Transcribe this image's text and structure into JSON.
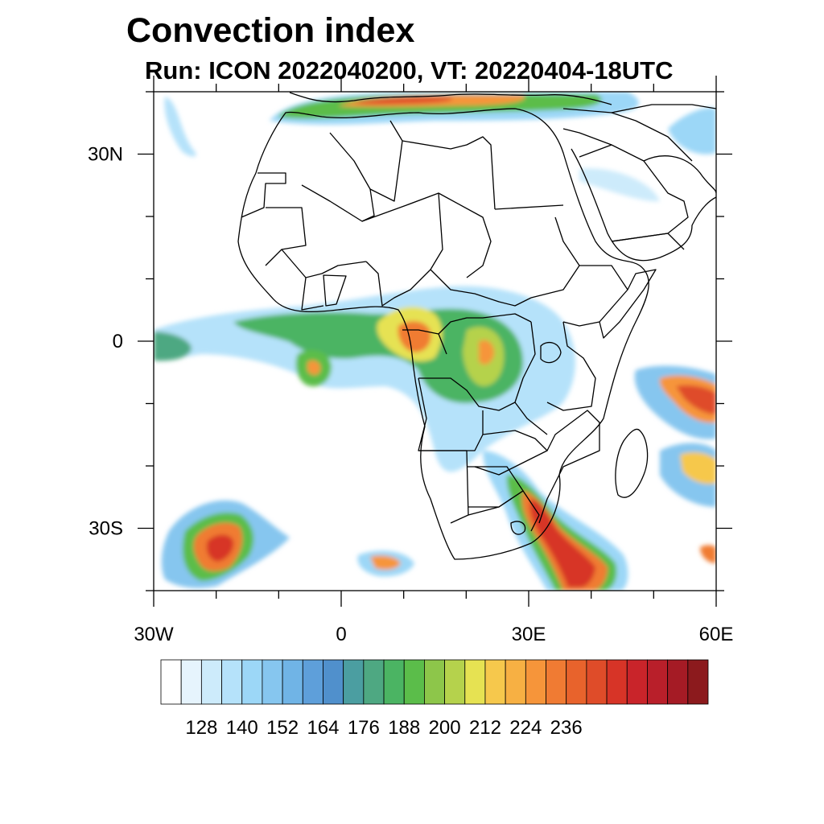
{
  "title": "Convection index",
  "subtitle": "Run: ICON 2022040200,  VT: 20220404-18UTC",
  "map": {
    "lat_range": [
      -40,
      40
    ],
    "lon_range": [
      -30,
      60
    ],
    "lat_ticks": [
      {
        "value": 30,
        "label": "30N"
      },
      {
        "value": 0,
        "label": "0"
      },
      {
        "value": -30,
        "label": "30S"
      }
    ],
    "lon_ticks": [
      {
        "value": -30,
        "label": "30W"
      },
      {
        "value": 0,
        "label": "0"
      },
      {
        "value": 30,
        "label": "30E"
      },
      {
        "value": 60,
        "label": "60E"
      }
    ],
    "minor_lat_ticks": [
      40,
      20,
      10,
      -10,
      -20,
      -40
    ],
    "minor_lon_ticks": [
      -20,
      -10,
      10,
      20,
      40,
      50
    ]
  },
  "colorbar": {
    "colors": [
      "#ffffff",
      "#e6f4fd",
      "#cdebfb",
      "#b5e2fa",
      "#9cd7f7",
      "#86c6ef",
      "#70b4e6",
      "#5e9fda",
      "#5090cc",
      "#4b9ea1",
      "#4ea882",
      "#4bb463",
      "#5bbd4a",
      "#8dc64a",
      "#b5d24c",
      "#e6e252",
      "#f6c84c",
      "#f7b043",
      "#f6953a",
      "#f07b33",
      "#e8632c",
      "#df4c29",
      "#d73427",
      "#c9242a",
      "#b91f2a",
      "#a51b25",
      "#8c1a1d"
    ],
    "labels": [
      "128",
      "140",
      "152",
      "164",
      "176",
      "188",
      "200",
      "212",
      "224",
      "236"
    ],
    "label_every": 2,
    "label_start_edge": 2
  }
}
